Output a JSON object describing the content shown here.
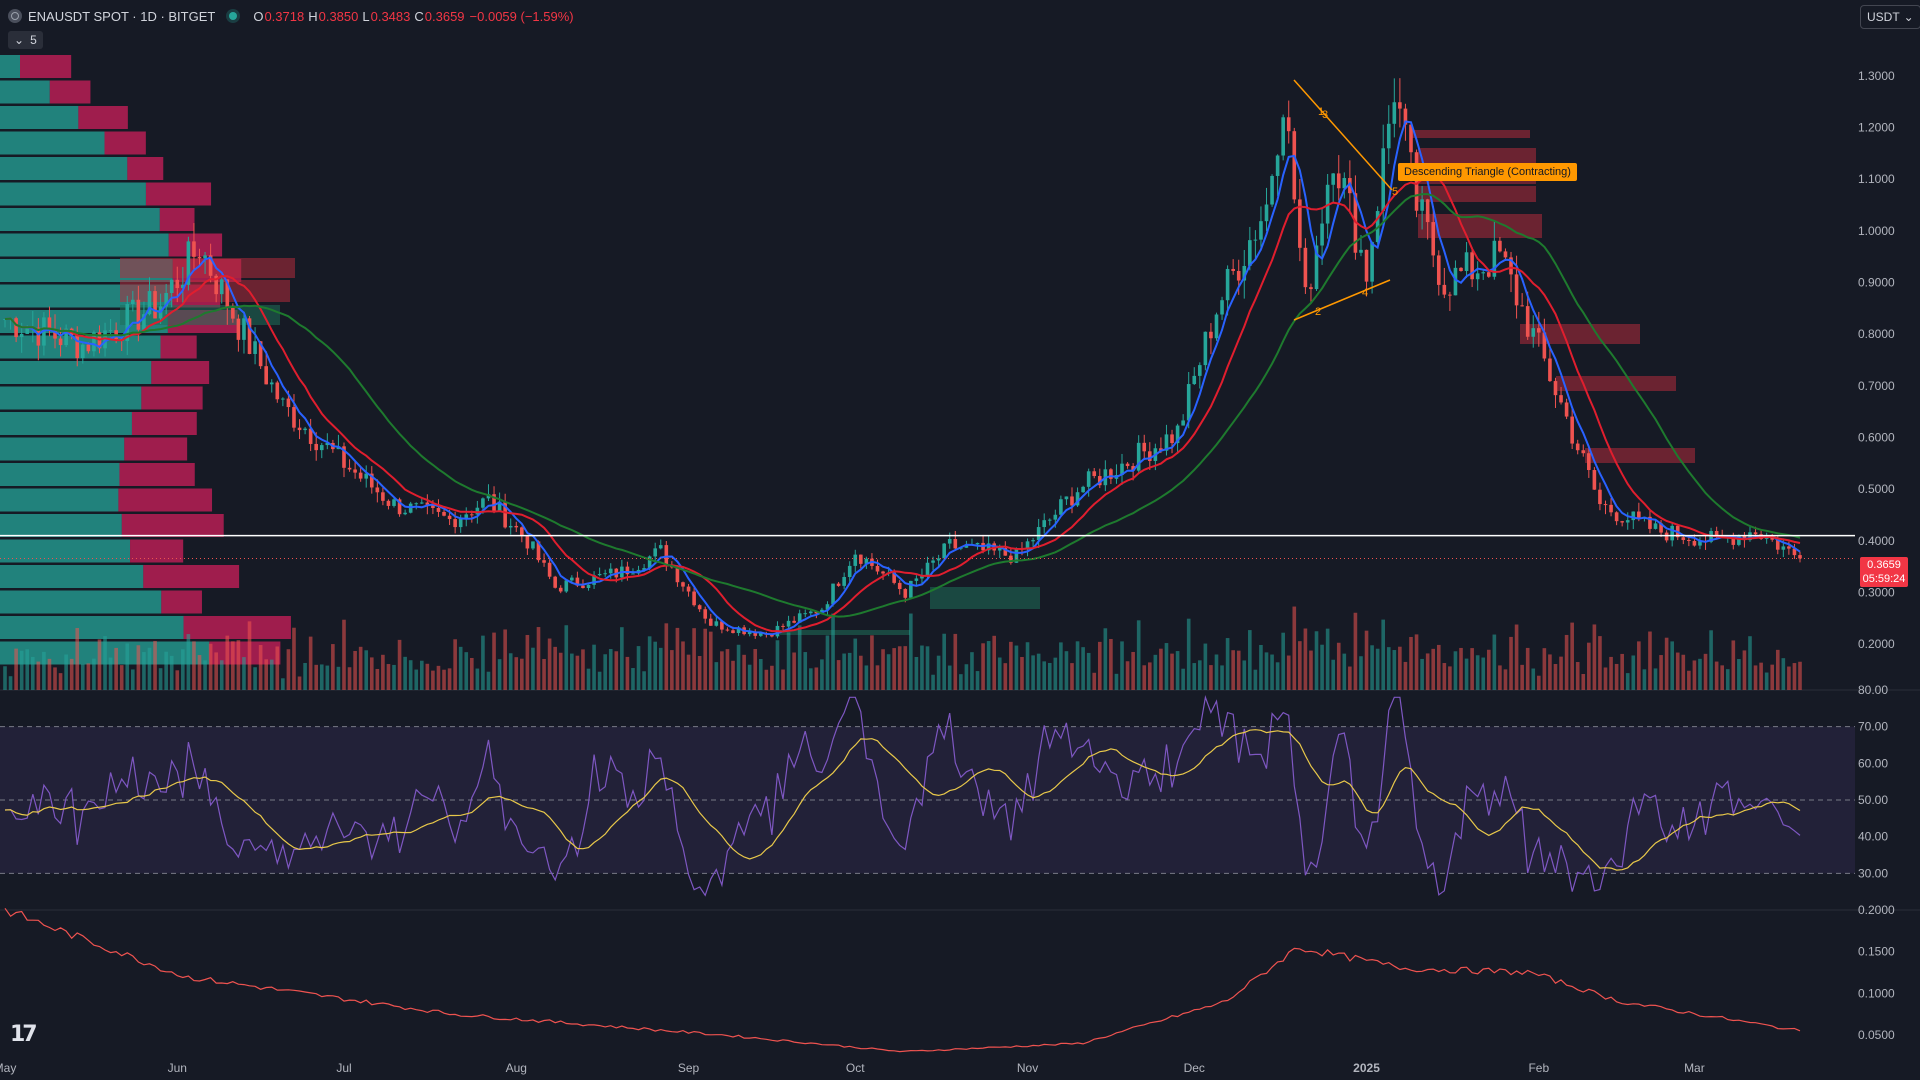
{
  "header": {
    "symbol": "ENAUSDT SPOT · 1D · BITGET",
    "open_label": "O",
    "open": "0.3718",
    "high_label": "H",
    "high": "0.3850",
    "low_label": "L",
    "low": "0.3483",
    "close_label": "C",
    "close": "0.3659",
    "change": "−0.0059 (−1.59%)"
  },
  "indicators_toggle": {
    "chevron": "chevron-down-icon",
    "count": "5"
  },
  "currency_button": {
    "label": "USDT",
    "icon": "chevron-down-icon"
  },
  "last_price": {
    "value": "0.3659",
    "countdown": "05:59:24"
  },
  "pattern_label": "Descending Triangle (Contracting)",
  "wave_labels": [
    "1",
    "2",
    "3",
    "4",
    "5"
  ],
  "colors": {
    "background": "#161a25",
    "bull": "#26a69a",
    "bear": "#ef5350",
    "ma_fast": "#2962ff",
    "ma_mid": "#e01e2e",
    "ma_slow": "#1e7a2e",
    "rsi": "#7e57c2",
    "rsi_ma": "#e8c84a",
    "pattern": "#ff9800"
  },
  "chart_data": [
    {
      "type": "candlestick",
      "title": "",
      "ylim": [
        0.15,
        1.35
      ],
      "yticks": [
        "1.3000",
        "1.2000",
        "1.1000",
        "1.0000",
        "0.9000",
        "0.8000",
        "0.7000",
        "0.6000",
        "0.5000",
        "0.4000",
        "0.3000",
        "0.2000"
      ],
      "xticks": [
        "May",
        "Jun",
        "Jul",
        "Aug",
        "Sep",
        "Oct",
        "Nov",
        "Dec",
        "2025",
        "Feb",
        "Mar"
      ],
      "horizontal_line": 0.41,
      "trend_points": [
        [
          "2024-05-01",
          0.83
        ],
        [
          "2024-05-15",
          0.78
        ],
        [
          "2024-05-29",
          0.86
        ],
        [
          "2024-06-05",
          0.97
        ],
        [
          "2024-06-12",
          0.82
        ],
        [
          "2024-06-20",
          0.66
        ],
        [
          "2024-07-01",
          0.55
        ],
        [
          "2024-07-10",
          0.47
        ],
        [
          "2024-07-20",
          0.44
        ],
        [
          "2024-07-27",
          0.48
        ],
        [
          "2024-08-03",
          0.4
        ],
        [
          "2024-08-08",
          0.31
        ],
        [
          "2024-08-20",
          0.34
        ],
        [
          "2024-08-27",
          0.38
        ],
        [
          "2024-09-05",
          0.24
        ],
        [
          "2024-09-15",
          0.22
        ],
        [
          "2024-09-25",
          0.27
        ],
        [
          "2024-10-01",
          0.38
        ],
        [
          "2024-10-10",
          0.3
        ],
        [
          "2024-10-18",
          0.39
        ],
        [
          "2024-10-30",
          0.37
        ],
        [
          "2024-11-10",
          0.5
        ],
        [
          "2024-11-20",
          0.56
        ],
        [
          "2024-11-28",
          0.61
        ],
        [
          "2024-12-05",
          0.85
        ],
        [
          "2024-12-14",
          1.05
        ],
        [
          "2024-12-17",
          1.27
        ],
        [
          "2024-12-21",
          0.86
        ],
        [
          "2024-12-26",
          1.16
        ],
        [
          "2025-01-01",
          0.92
        ],
        [
          "2025-01-06",
          1.28
        ],
        [
          "2025-01-10",
          1.05
        ],
        [
          "2025-01-15",
          0.9
        ],
        [
          "2025-01-25",
          0.95
        ],
        [
          "2025-02-03",
          0.72
        ],
        [
          "2025-02-12",
          0.47
        ],
        [
          "2025-02-22",
          0.42
        ],
        [
          "2025-03-05",
          0.4
        ],
        [
          "2025-03-12",
          0.42
        ],
        [
          "2025-03-20",
          0.3659
        ]
      ],
      "ma_series": [
        "ma_fast",
        "ma_mid",
        "ma_slow"
      ]
    },
    {
      "type": "line",
      "title": "",
      "ylim": [
        20,
        80
      ],
      "yticks": [
        "80.00",
        "70.00",
        "60.00",
        "50.00",
        "40.00",
        "30.00"
      ],
      "bands": [
        30,
        50,
        70
      ]
    },
    {
      "type": "line",
      "title": "",
      "ylim": [
        0.02,
        0.2
      ],
      "yticks": [
        "0.2000",
        "0.1500",
        "0.1000",
        "0.0500"
      ]
    }
  ]
}
